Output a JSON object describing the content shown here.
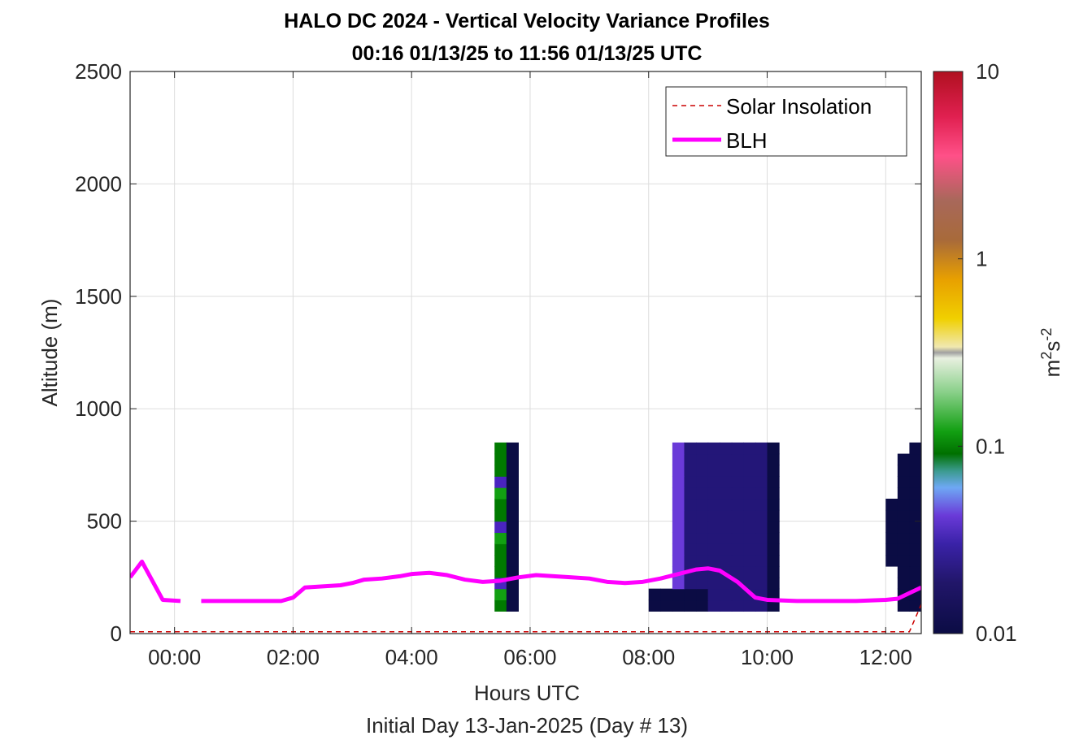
{
  "chart_data": {
    "type": "heatmap",
    "title": "HALO DC 2024 - Vertical Velocity Variance Profiles",
    "subtitle": "00:16 01/13/25 to 11:56 01/13/25  UTC",
    "xlabel": "Hours UTC",
    "xlabel2": "Initial Day 13-Jan-2025 (Day # 13)",
    "ylabel": "Altitude (m)",
    "xlim": [
      -0.75,
      12.6
    ],
    "ylim": [
      0,
      2500
    ],
    "grid": true,
    "x_ticks": [
      0,
      2,
      4,
      6,
      8,
      10,
      12
    ],
    "x_tick_labels": [
      "00:00",
      "02:00",
      "04:00",
      "06:00",
      "08:00",
      "10:00",
      "12:00"
    ],
    "y_ticks": [
      0,
      500,
      1000,
      1500,
      2000,
      2500
    ],
    "y_tick_labels": [
      "0",
      "500",
      "1000",
      "1500",
      "2000",
      "2500"
    ],
    "colorbar": {
      "label": "m²s⁻²",
      "scale": "log",
      "range": [
        0.01,
        10
      ],
      "ticks": [
        0.01,
        0.1,
        1,
        10
      ],
      "tick_labels": [
        "0.01",
        "0.1",
        "1",
        "10"
      ],
      "colors": [
        "#0b0c44",
        "#2d1a8c",
        "#6a3ad8",
        "#6ea8f4",
        "#3a9a8c",
        "#007a00",
        "#12a012",
        "#5ec05e",
        "#a8d8a8",
        "#e8f0e0",
        "#f0e0a0",
        "#f0c800",
        "#e8a000",
        "#a8783a",
        "#a86a5a",
        "#ff4080",
        "#c00020"
      ]
    },
    "heat_x_start": 0.2,
    "heat_col_width": 0.2,
    "heat_y_start": 100,
    "heat_row_height": 50,
    "heat_rows": [
      "..........................2A...........AAAAABBBBBA..........AAABAAAABAABBBBBB",
      "..........................5A...........AAAAABBBBBA..........AAABAAAABAABBBBBB",
      "..........................0A.............DBBBBBBBA..........AAAAAAAABAABBAAAA",
      "..........................2A.............DBBBBBBBA..........AAAAAAAAAAAAAAAAA",
      "..........................2A.............DBBBBBBBA.........AAAAAAAAAAAAAAAAAA",
      "..........................2A.............DBBBBBBBA.........AAAAAAAAAAAAAAAAAA",
      "..........................5A.............DBBBBBBBA.........AAAAAAAAAAAAAAAAAA",
      "..........................0A.............DBBBBBBBA.........AAAAAAAAAAAAAAAAAA",
      "..........................2A.............DBBBBBBBA.........AAAAAAAAAAAAAAAAAA",
      "..........................2A.............DBBBBBBBA.........AAAAAAAAAAAAAAAAAA",
      "..........................5A.............DBBBBBBBA..........AAAAAAAAAAAAAAAAA",
      "..........................0A.............DBBBBBBBA..........AAAAAAAAAAAAAAAAA",
      "..........................2A.............DBBBBBBBA..........AAAAAAAAAAAAAAAAA",
      "..........................2A.............DBBBBBBBA..........AAAAAAAAAAAAAAAAA",
      "..........................2A.............DBBBBBBBA...........AAAAAAAAAAAAAAA.",
      ".............................................................................",
      ".............................................................................",
      ".............................................................................",
      ".............................................................................",
      ".............................................................................",
      ".............................................................................",
      ".............................................................................",
      ".............................................................................",
      ".............................................................................",
      ".............................................................................",
      ".............................................................................",
      ".............................................................................",
      ".............................................................................",
      ".............................................................................",
      ".............................................................................",
      ".............................................................................",
      ".............................................................................",
      ".............................................................................",
      ".............................................................................",
      ".............................................................................",
      ".............................................................................",
      ".............................................................................",
      ".............................................................................",
      ".............................................................................",
      ".............................................................................",
      "............................................................................."
    ],
    "series": [
      {
        "name": "Solar Insolation",
        "color": "#cc0000",
        "style": "dashed",
        "x": [
          -0.75,
          12.4,
          12.6
        ],
        "y": [
          8,
          8,
          130
        ]
      },
      {
        "name": "BLH",
        "color": "#ff00ff",
        "style": "solid",
        "segments": [
          {
            "x": [
              -0.75,
              -0.55,
              -0.2,
              0.1
            ],
            "y": [
              250,
              320,
              150,
              145
            ]
          },
          {
            "x": [
              0.45,
              1.8,
              2.0,
              2.2,
              2.5,
              2.8,
              3.0,
              3.2,
              3.5,
              3.8,
              4.0,
              4.3,
              4.6,
              4.9,
              5.2,
              5.5,
              5.8,
              6.1,
              6.4,
              6.7,
              7.0,
              7.3,
              7.6,
              7.9,
              8.2,
              8.5,
              8.8,
              9.0,
              9.2,
              9.5,
              9.8,
              10.0,
              10.5,
              11.0,
              11.5,
              12.0,
              12.2,
              12.4,
              12.6
            ],
            "y": [
              145,
              145,
              160,
              205,
              210,
              215,
              225,
              240,
              245,
              255,
              265,
              270,
              260,
              240,
              230,
              235,
              250,
              260,
              255,
              250,
              245,
              230,
              225,
              230,
              245,
              265,
              285,
              290,
              280,
              230,
              160,
              150,
              145,
              145,
              145,
              150,
              155,
              180,
              205
            ]
          }
        ]
      }
    ],
    "legend": [
      "Solar Insolation",
      "BLH"
    ],
    "legend_position": "top-right"
  }
}
